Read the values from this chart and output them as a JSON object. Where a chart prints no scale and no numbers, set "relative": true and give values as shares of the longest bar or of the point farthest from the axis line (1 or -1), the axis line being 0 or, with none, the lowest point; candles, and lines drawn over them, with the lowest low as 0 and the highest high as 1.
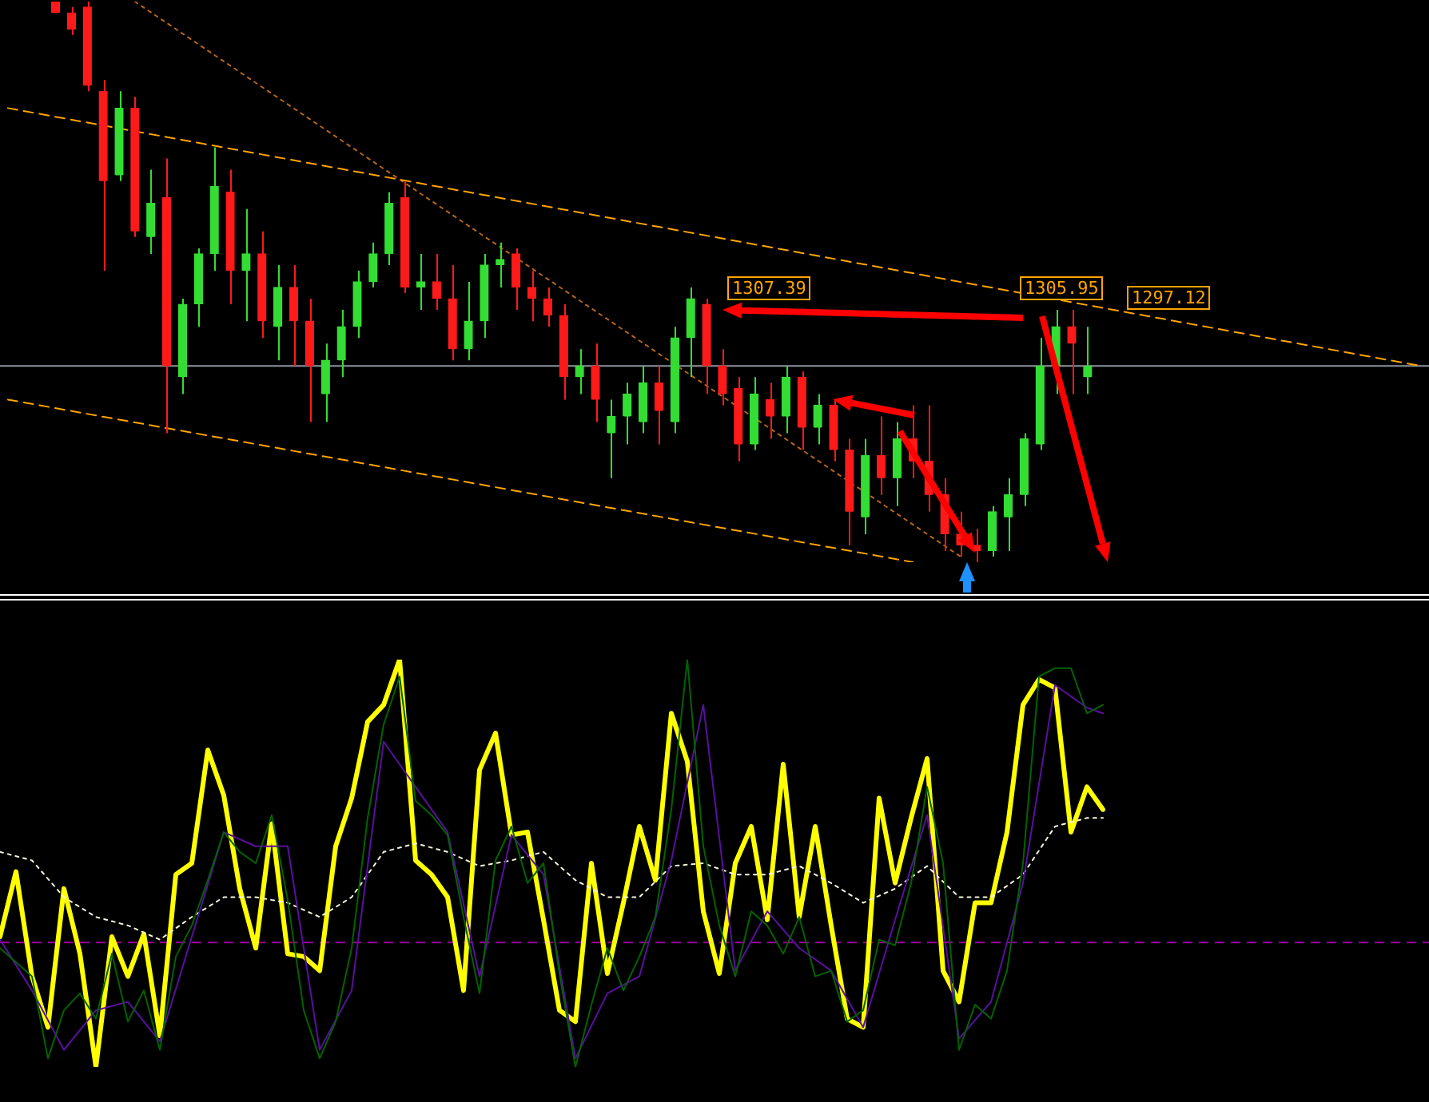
{
  "chart_data": [
    {
      "type": "candlestick",
      "relative": true,
      "tick_labels": false,
      "grid": false,
      "legend": false,
      "categories": [
        null,
        null,
        null,
        null,
        null,
        null,
        null,
        null,
        null,
        null,
        null,
        null,
        null,
        null,
        null,
        null,
        null,
        null,
        null,
        null,
        null,
        null,
        null,
        null,
        null,
        null,
        null,
        null,
        null,
        null,
        null,
        null,
        null,
        null,
        null,
        null,
        null,
        null,
        null,
        null,
        null,
        null,
        null,
        null,
        null,
        null,
        null,
        null,
        null,
        null,
        null,
        null,
        null,
        null,
        null,
        null,
        null,
        null,
        null,
        null,
        null,
        null,
        null,
        null,
        null,
        null,
        null,
        null,
        null,
        null,
        null,
        null,
        null,
        null,
        null,
        null,
        null,
        null,
        null,
        null,
        null,
        null,
        null,
        null,
        null,
        null,
        null,
        null,
        null,
        null
      ],
      "ohlc": [
        null,
        null,
        null,
        [
          1.0,
          1.0,
          0.98,
          0.98
        ],
        [
          0.98,
          0.99,
          0.94,
          0.95
        ],
        [
          0.99,
          1.0,
          0.84,
          0.85
        ],
        [
          0.84,
          0.86,
          0.52,
          0.68
        ],
        [
          0.69,
          0.84,
          0.68,
          0.81
        ],
        [
          0.81,
          0.83,
          0.58,
          0.59
        ],
        [
          0.58,
          0.7,
          0.55,
          0.64
        ],
        [
          0.65,
          0.72,
          0.23,
          0.35
        ],
        [
          0.33,
          0.47,
          0.3,
          0.46
        ],
        [
          0.46,
          0.56,
          0.42,
          0.55
        ],
        [
          0.55,
          0.74,
          0.52,
          0.67
        ],
        [
          0.66,
          0.7,
          0.46,
          0.52
        ],
        [
          0.52,
          0.63,
          0.43,
          0.55
        ],
        [
          0.55,
          0.59,
          0.4,
          0.43
        ],
        [
          0.42,
          0.53,
          0.36,
          0.49
        ],
        [
          0.49,
          0.53,
          0.35,
          0.43
        ],
        [
          0.43,
          0.47,
          0.25,
          0.35
        ],
        [
          0.3,
          0.39,
          0.25,
          0.36
        ],
        [
          0.36,
          0.45,
          0.33,
          0.42
        ],
        [
          0.42,
          0.52,
          0.4,
          0.5
        ],
        [
          0.5,
          0.57,
          0.49,
          0.55
        ],
        [
          0.55,
          0.66,
          0.53,
          0.64
        ],
        [
          0.65,
          0.68,
          0.48,
          0.49
        ],
        [
          0.49,
          0.55,
          0.45,
          0.5
        ],
        [
          0.5,
          0.55,
          0.45,
          0.47
        ],
        [
          0.47,
          0.53,
          0.36,
          0.38
        ],
        [
          0.38,
          0.5,
          0.36,
          0.43
        ],
        [
          0.43,
          0.55,
          0.4,
          0.53
        ],
        [
          0.53,
          0.57,
          0.49,
          0.54
        ],
        [
          0.55,
          0.56,
          0.45,
          0.49
        ],
        [
          0.49,
          0.52,
          0.43,
          0.47
        ],
        [
          0.47,
          0.49,
          0.42,
          0.44
        ],
        [
          0.44,
          0.46,
          0.29,
          0.33
        ],
        [
          0.33,
          0.38,
          0.3,
          0.35
        ],
        [
          0.35,
          0.39,
          0.25,
          0.29
        ],
        [
          0.23,
          0.29,
          0.15,
          0.26
        ],
        [
          0.26,
          0.32,
          0.21,
          0.3
        ],
        [
          0.25,
          0.35,
          0.23,
          0.32
        ],
        [
          0.32,
          0.35,
          0.21,
          0.27
        ],
        [
          0.25,
          0.42,
          0.23,
          0.4
        ],
        [
          0.4,
          0.49,
          0.33,
          0.47
        ],
        [
          0.46,
          0.47,
          0.3,
          0.35
        ],
        [
          0.35,
          0.38,
          0.28,
          0.3
        ],
        [
          0.31,
          0.33,
          0.18,
          0.21
        ],
        [
          0.21,
          0.33,
          0.2,
          0.3
        ],
        [
          0.29,
          0.32,
          0.22,
          0.26
        ],
        [
          0.26,
          0.35,
          0.23,
          0.33
        ],
        [
          0.33,
          0.34,
          0.2,
          0.24
        ],
        [
          0.24,
          0.3,
          0.21,
          0.28
        ],
        [
          0.28,
          0.29,
          0.18,
          0.2
        ],
        [
          0.2,
          0.22,
          0.03,
          0.09
        ],
        [
          0.08,
          0.22,
          0.05,
          0.19
        ],
        [
          0.19,
          0.26,
          0.12,
          0.15
        ],
        [
          0.15,
          0.25,
          0.1,
          0.22
        ],
        [
          0.22,
          0.28,
          0.15,
          0.18
        ],
        [
          0.18,
          0.28,
          0.09,
          0.12
        ],
        [
          0.12,
          0.15,
          0.02,
          0.05
        ],
        [
          0.05,
          0.09,
          0.01,
          0.03
        ],
        [
          0.03,
          0.06,
          0.0,
          0.02
        ],
        [
          0.02,
          0.1,
          0.01,
          0.09
        ],
        [
          0.08,
          0.15,
          0.02,
          0.12
        ],
        [
          0.12,
          0.23,
          0.1,
          0.22
        ],
        [
          0.21,
          0.4,
          0.2,
          0.35
        ],
        [
          0.35,
          0.45,
          0.3,
          0.42
        ],
        [
          0.42,
          0.45,
          0.3,
          0.39
        ],
        [
          0.33,
          0.42,
          0.3,
          0.35
        ],
        null,
        null,
        null,
        null,
        null,
        null,
        null,
        null,
        null,
        null,
        null,
        null,
        null,
        null,
        null,
        null,
        null,
        null,
        null,
        null,
        null
      ],
      "colors": [
        null,
        null,
        null,
        "#ff1a1a",
        "#ff1a1a",
        "#ff1a1a",
        "#ff1a1a",
        "#33dd33",
        "#ff1a1a",
        "#33dd33",
        "#ff1a1a",
        "#33dd33",
        "#33dd33",
        "#33dd33",
        "#ff1a1a",
        "#33dd33",
        "#ff1a1a",
        "#33dd33",
        "#ff1a1a",
        "#ff1a1a",
        "#33dd33",
        "#33dd33",
        "#33dd33",
        "#33dd33",
        "#33dd33",
        "#ff1a1a",
        "#33dd33",
        "#ff1a1a",
        "#ff1a1a",
        "#33dd33",
        "#33dd33",
        "#33dd33",
        "#ff1a1a",
        "#ff1a1a",
        "#ff1a1a",
        "#ff1a1a",
        "#33dd33",
        "#ff1a1a",
        "#33dd33",
        "#33dd33",
        "#33dd33",
        "#ff1a1a",
        "#33dd33",
        "#33dd33",
        "#ff1a1a",
        "#ff1a1a",
        "#ff1a1a",
        "#33dd33",
        "#ff1a1a",
        "#33dd33",
        "#ff1a1a",
        "#33dd33",
        "#ff1a1a",
        "#ff1a1a",
        "#33dd33",
        "#ff1a1a",
        "#33dd33",
        "#ff1a1a",
        "#ff1a1a",
        "#ff1a1a",
        "#ff1a1a",
        "#ff1a1a",
        "#33dd33",
        "#33dd33",
        "#33dd33",
        "#33dd33",
        "#33dd33",
        "#ff1a1a",
        "#33dd33",
        null,
        null,
        null,
        null,
        null,
        null,
        null,
        null,
        null,
        null,
        null,
        null,
        null,
        null,
        null,
        null,
        null,
        null,
        null,
        null,
        null
      ],
      "series": [
        {
          "type": "line",
          "color": "#ffa500",
          "line_style": "dashed",
          "values": [
            0.81,
            null,
            null,
            null,
            null,
            null,
            null,
            null,
            null,
            null,
            null,
            null,
            null,
            null,
            null,
            null,
            null,
            null,
            null,
            null,
            null,
            null,
            null,
            null,
            null,
            null,
            null,
            null,
            null,
            null,
            null,
            null,
            null,
            null,
            null,
            null,
            null,
            null,
            null,
            null,
            null,
            null,
            null,
            null,
            null,
            null,
            null,
            null,
            null,
            null,
            null,
            null,
            null,
            null,
            null,
            null,
            null,
            null,
            null,
            null,
            null,
            null,
            null,
            null,
            null,
            null,
            null,
            null,
            null,
            null,
            null,
            null,
            null,
            null,
            null,
            null,
            null,
            null,
            null,
            null,
            null,
            null,
            null,
            null,
            null,
            null,
            null,
            null,
            null,
            0.35
          ]
        },
        {
          "type": "line",
          "color": "#ffa500",
          "line_style": "dashed",
          "values": [
            0.29,
            null,
            null,
            null,
            null,
            null,
            null,
            null,
            null,
            null,
            null,
            null,
            null,
            null,
            null,
            null,
            null,
            null,
            null,
            null,
            null,
            null,
            null,
            null,
            null,
            null,
            null,
            null,
            null,
            null,
            null,
            null,
            null,
            null,
            null,
            null,
            null,
            null,
            null,
            null,
            null,
            null,
            null,
            null,
            null,
            null,
            null,
            null,
            null,
            null,
            null,
            null,
            null,
            null,
            null,
            null,
            null,
            0.0,
            null,
            null,
            null,
            null,
            null,
            null,
            null,
            null,
            null,
            null,
            null,
            null,
            null,
            null,
            null,
            null,
            null,
            null,
            null,
            null,
            null,
            null,
            null,
            null,
            null,
            null,
            null,
            null,
            null,
            null,
            null,
            null
          ]
        },
        {
          "type": "line",
          "color": "#b5651d",
          "line_style": "dotted",
          "values": [
            null,
            null,
            null,
            null,
            null,
            null,
            null,
            null,
            1.0,
            null,
            null,
            null,
            null,
            null,
            null,
            null,
            null,
            null,
            null,
            null,
            null,
            null,
            null,
            null,
            null,
            null,
            null,
            null,
            null,
            null,
            null,
            null,
            null,
            null,
            null,
            null,
            null,
            null,
            null,
            null,
            null,
            null,
            null,
            null,
            null,
            null,
            null,
            null,
            null,
            null,
            null,
            null,
            null,
            null,
            null,
            null,
            null,
            null,
            null,
            null,
            0.01,
            null,
            null,
            null,
            null,
            null,
            null,
            null,
            null,
            null,
            null,
            null,
            null,
            null,
            null,
            null,
            null,
            null,
            null,
            null,
            null,
            null,
            null,
            null,
            null,
            null,
            null,
            null,
            null,
            null
          ]
        }
      ],
      "ref_lines": [
        {
          "axis": "y",
          "value": 0.35,
          "color": "#8a93a0",
          "line_style": "solid"
        }
      ],
      "annotations": [
        "1307.39",
        "1305.95",
        "1297.12"
      ]
    },
    {
      "type": "line",
      "relative": true,
      "tick_labels": false,
      "grid": false,
      "legend": false,
      "marker": "none",
      "categories": [
        null,
        null,
        null,
        null,
        null,
        null,
        null,
        null,
        null,
        null,
        null,
        null,
        null,
        null,
        null,
        null,
        null,
        null,
        null,
        null,
        null,
        null,
        null,
        null,
        null,
        null,
        null,
        null,
        null,
        null,
        null,
        null,
        null,
        null,
        null,
        null,
        null,
        null,
        null,
        null,
        null,
        null,
        null,
        null,
        null,
        null,
        null,
        null,
        null,
        null,
        null,
        null,
        null,
        null,
        null,
        null,
        null,
        null,
        null,
        null,
        null,
        null,
        null,
        null,
        null,
        null,
        null,
        null,
        null,
        null
      ],
      "series": [
        {
          "color": "#006400",
          "line_style": "solid",
          "values": [
            -0.02,
            -0.07,
            -0.12,
            -0.41,
            -0.24,
            -0.18,
            -0.27,
            -0.04,
            -0.28,
            -0.17,
            -0.38,
            -0.05,
            0.06,
            0.22,
            0.39,
            0.32,
            0.28,
            0.45,
            0.15,
            -0.24,
            -0.41,
            -0.28,
            -0.02,
            0.44,
            0.77,
            0.94,
            0.5,
            0.45,
            0.38,
            0.09,
            -0.18,
            0.29,
            0.41,
            0.21,
            0.28,
            -0.11,
            -0.44,
            -0.22,
            -0.02,
            -0.17,
            -0.05,
            0.09,
            0.47,
            1.0,
            0.34,
            0.06,
            -0.12,
            0.11,
            0.06,
            -0.04,
            0.09,
            -0.12,
            -0.1,
            -0.28,
            -0.24,
            0.01,
            -0.01,
            0.21,
            0.55,
            0.28,
            -0.38,
            -0.22,
            -0.27,
            -0.1,
            0.28,
            0.94,
            0.97,
            0.97,
            0.81,
            0.84
          ]
        },
        {
          "color": "#5a0fa0",
          "line_style": "solid",
          "values": [
            0.01,
            null,
            -0.17,
            null,
            -0.38,
            null,
            -0.24,
            null,
            -0.21,
            null,
            -0.35,
            null,
            0.02,
            null,
            0.39,
            null,
            0.34,
            null,
            0.34,
            null,
            -0.38,
            null,
            -0.17,
            null,
            0.71,
            null,
            0.55,
            null,
            0.39,
            null,
            -0.12,
            null,
            0.38,
            null,
            0.24,
            null,
            -0.41,
            null,
            -0.18,
            null,
            -0.12,
            null,
            0.29,
            null,
            0.84,
            null,
            -0.1,
            null,
            0.11,
            null,
            -0.02,
            null,
            -0.1,
            null,
            -0.3,
            null,
            0.08,
            null,
            0.45,
            null,
            -0.34,
            null,
            -0.21,
            null,
            0.21,
            null,
            0.91,
            null,
            0.83,
            0.81
          ]
        },
        {
          "color": "#f5f5dc",
          "line_style": "dotted",
          "values": [
            0.32,
            null,
            0.29,
            null,
            0.16,
            null,
            0.09,
            null,
            0.06,
            null,
            0.01,
            null,
            0.09,
            null,
            0.16,
            null,
            0.16,
            null,
            0.14,
            null,
            0.09,
            null,
            0.16,
            null,
            0.32,
            null,
            0.35,
            null,
            0.32,
            null,
            0.27,
            null,
            0.29,
            null,
            0.32,
            null,
            0.22,
            null,
            0.16,
            null,
            0.16,
            null,
            0.27,
            null,
            0.28,
            null,
            0.24,
            null,
            0.24,
            null,
            0.27,
            null,
            0.21,
            null,
            0.14,
            null,
            0.19,
            null,
            0.27,
            null,
            0.16,
            null,
            0.16,
            null,
            0.24,
            null,
            0.41,
            null,
            0.44,
            0.44
          ]
        },
        {
          "color": "#ffff00",
          "line_style": "solid",
          "values": [
            0.02,
            0.25,
            -0.12,
            -0.3,
            0.19,
            -0.04,
            -0.44,
            0.02,
            -0.12,
            0.03,
            -0.33,
            0.24,
            0.28,
            0.68,
            0.52,
            0.19,
            -0.02,
            0.42,
            -0.04,
            -0.05,
            -0.1,
            0.34,
            0.51,
            0.78,
            0.84,
            1.0,
            0.29,
            0.24,
            0.16,
            -0.17,
            0.61,
            0.74,
            0.38,
            0.39,
            0.08,
            -0.24,
            -0.28,
            0.28,
            -0.11,
            0.14,
            0.41,
            0.22,
            0.81,
            0.64,
            0.11,
            -0.11,
            0.28,
            0.41,
            0.08,
            0.63,
            0.09,
            0.41,
            0.06,
            -0.27,
            -0.3,
            0.51,
            0.21,
            0.44,
            0.65,
            -0.1,
            -0.21,
            0.14,
            0.14,
            0.39,
            0.84,
            0.93,
            0.9,
            0.39,
            0.55,
            0.47
          ]
        }
      ],
      "ref_lines": [
        {
          "axis": "y",
          "value": 0,
          "color": "#990099",
          "line_style": "dashed"
        }
      ]
    }
  ]
}
